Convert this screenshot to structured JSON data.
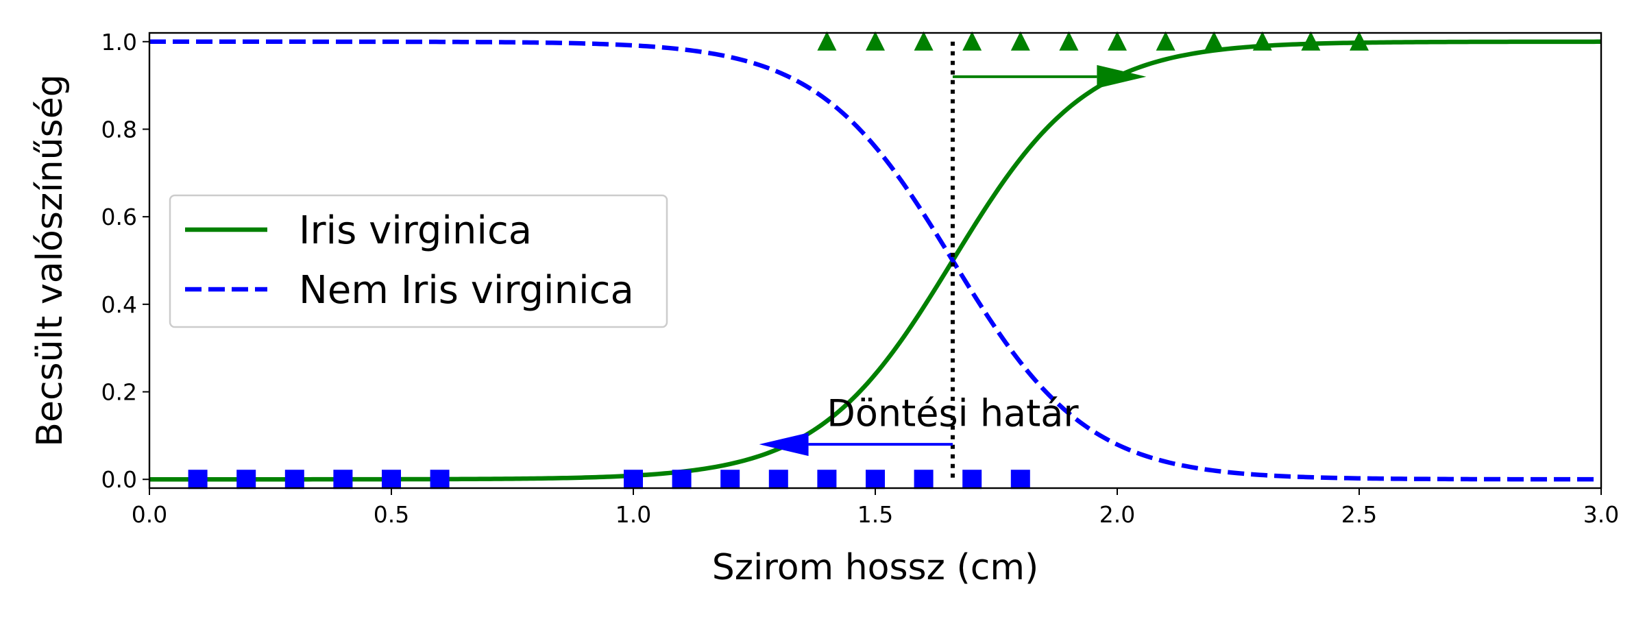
{
  "chart_data": {
    "type": "line",
    "xlabel": "Szirom hossz (cm)",
    "ylabel": "Becsült valószínűség",
    "xlim": [
      0.0,
      3.0
    ],
    "ylim": [
      -0.02,
      1.02
    ],
    "x_ticks": [
      "0.0",
      "0.5",
      "1.0",
      "1.5",
      "2.0",
      "2.5",
      "3.0"
    ],
    "y_ticks": [
      "0.0",
      "0.2",
      "0.4",
      "0.6",
      "0.8",
      "1.0"
    ],
    "grid": false,
    "legend_position": "center-left",
    "decision_boundary": 1.66,
    "logistic_steepness": 7.2,
    "series": [
      {
        "name": "Iris virginica",
        "style": "solid",
        "color": "#008000",
        "x": [
          0.0,
          0.25,
          0.5,
          0.75,
          1.0,
          1.25,
          1.5,
          1.66,
          1.75,
          2.0,
          2.25,
          2.5,
          2.75,
          3.0
        ],
        "y": [
          0.0,
          0.0,
          0.0,
          0.001,
          0.0085,
          0.05,
          0.24,
          0.5,
          0.66,
          0.92,
          0.985,
          0.998,
          1.0,
          1.0
        ]
      },
      {
        "name": "Nem Iris virginica",
        "style": "dashed",
        "color": "#0000ff",
        "x": [
          0.0,
          0.25,
          0.5,
          0.75,
          1.0,
          1.25,
          1.5,
          1.66,
          1.75,
          2.0,
          2.25,
          2.5,
          2.75,
          3.0
        ],
        "y": [
          1.0,
          1.0,
          1.0,
          0.999,
          0.9915,
          0.95,
          0.76,
          0.5,
          0.34,
          0.08,
          0.015,
          0.002,
          0.0,
          0.0
        ]
      }
    ],
    "markers": {
      "virginica_triangles": {
        "color": "#008000",
        "y": 1.0,
        "x": [
          1.4,
          1.5,
          1.6,
          1.7,
          1.8,
          1.9,
          2.0,
          2.1,
          2.2,
          2.3,
          2.4,
          2.5
        ]
      },
      "not_virginica_squares": {
        "color": "#0000ff",
        "y": 0.0,
        "x": [
          0.1,
          0.2,
          0.3,
          0.4,
          0.5,
          0.6,
          1.0,
          1.1,
          1.2,
          1.3,
          1.4,
          1.5,
          1.6,
          1.7,
          1.8
        ]
      }
    },
    "annotation": {
      "text": "Döntési határ",
      "x": 1.66,
      "y": 0.15
    },
    "arrows": [
      {
        "color": "#008000",
        "x_start": 1.66,
        "x_end": 2.06,
        "y": 0.92
      },
      {
        "color": "#0000ff",
        "x_start": 1.66,
        "x_end": 1.26,
        "y": 0.08
      }
    ]
  }
}
